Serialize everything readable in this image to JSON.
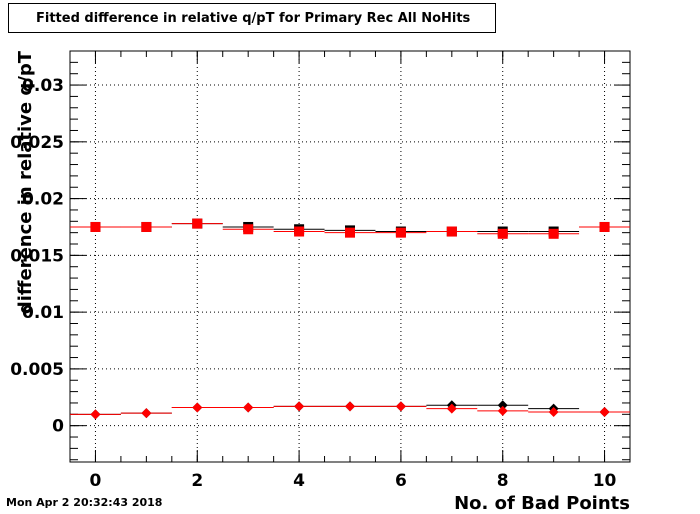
{
  "title": "Fitted difference in relative q/pT for Primary Rec All NoHits",
  "timestamp": "Mon Apr  2 20:32:43 2018",
  "chart_data": {
    "type": "scatter",
    "title": "Fitted difference in relative q/pT for Primary Rec All NoHits",
    "xlabel": "No. of Bad Points",
    "ylabel": "difference in relative q/pT",
    "xlim": [
      -0.5,
      10.5
    ],
    "ylim": [
      -0.0032,
      0.033
    ],
    "grid": true,
    "xticks": [
      "0",
      "2",
      "4",
      "6",
      "8",
      "10"
    ],
    "yticks": [
      "0",
      "0.005",
      "0.01",
      "0.015",
      "0.02",
      "0.025",
      "0.03"
    ],
    "series": [
      {
        "marker": "square",
        "color": "#000000",
        "x": [
          0,
          1,
          2,
          3,
          4,
          5,
          6,
          7,
          8,
          9,
          10
        ],
        "values": [
          0.0175,
          0.0175,
          0.0178,
          0.0175,
          0.0173,
          0.0172,
          0.0171,
          0.0171,
          0.0171,
          0.0171,
          0.0175
        ]
      },
      {
        "marker": "square",
        "color": "#ff0000",
        "x": [
          0,
          1,
          2,
          3,
          4,
          5,
          6,
          7,
          8,
          9,
          10
        ],
        "values": [
          0.0175,
          0.0175,
          0.0178,
          0.0173,
          0.0171,
          0.017,
          0.017,
          0.0171,
          0.0169,
          0.0169,
          0.0175
        ]
      },
      {
        "marker": "diamond",
        "color": "#000000",
        "x": [
          0,
          1,
          2,
          3,
          4,
          5,
          6,
          7,
          8,
          9,
          10
        ],
        "values": [
          0.001,
          0.0011,
          0.0016,
          0.0016,
          0.0017,
          0.0017,
          0.0017,
          0.0018,
          0.0018,
          0.0015,
          0.0012
        ]
      },
      {
        "marker": "diamond",
        "color": "#ff0000",
        "x": [
          0,
          1,
          2,
          3,
          4,
          5,
          6,
          7,
          8,
          9,
          10
        ],
        "values": [
          0.001,
          0.0011,
          0.0016,
          0.0016,
          0.0017,
          0.0017,
          0.0017,
          0.0015,
          0.0013,
          0.0012,
          0.0012
        ]
      }
    ]
  }
}
